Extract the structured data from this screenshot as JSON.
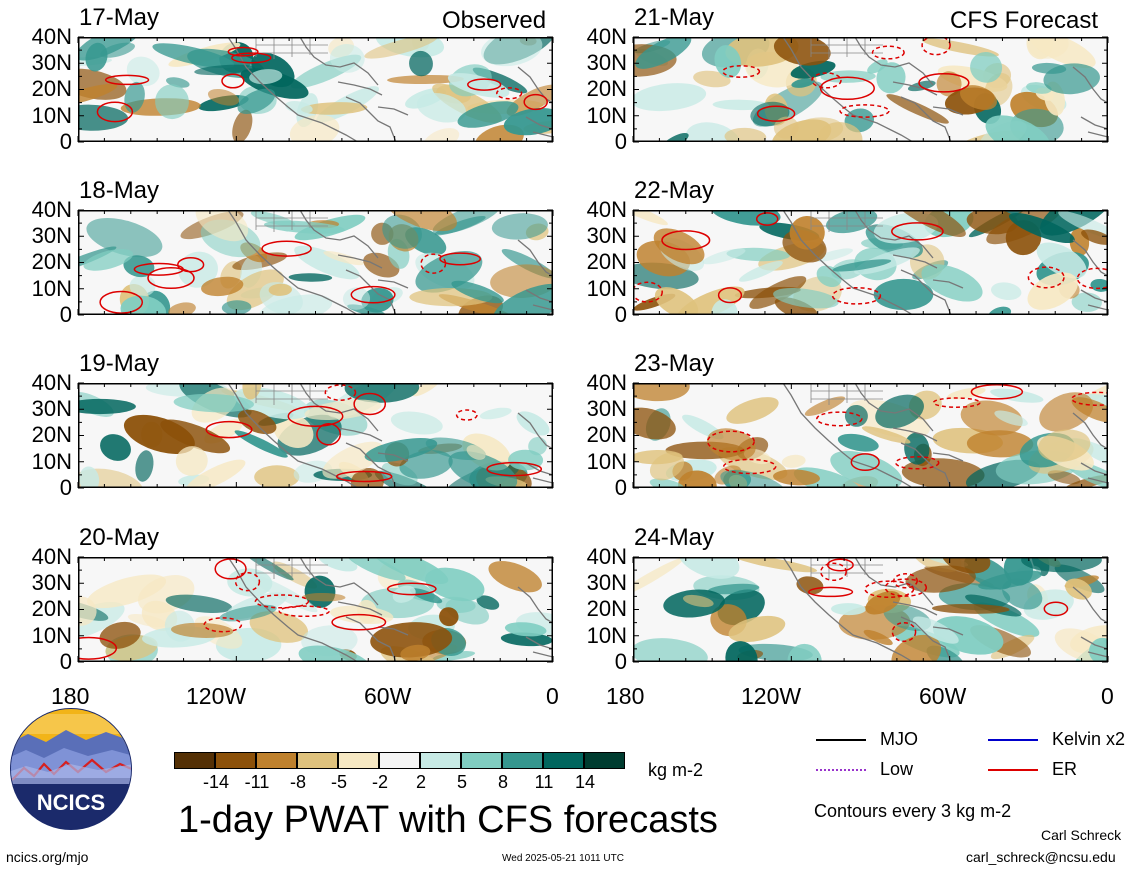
{
  "left_column": {
    "header": "Observed",
    "panels": [
      "17-May",
      "18-May",
      "19-May",
      "20-May"
    ]
  },
  "right_column": {
    "header": "CFS Forecast",
    "panels": [
      "21-May",
      "22-May",
      "23-May",
      "24-May"
    ]
  },
  "y_axis_ticks": [
    "40N",
    "30N",
    "20N",
    "10N",
    "0"
  ],
  "x_axis_ticks": [
    "180",
    "120W",
    "60W",
    "0"
  ],
  "colorbar": {
    "labels": [
      "-14",
      "-11",
      "-8",
      "-5",
      "-2",
      "2",
      "5",
      "8",
      "11",
      "14"
    ],
    "units": "kg m-2",
    "colors": [
      "#543005",
      "#8c510a",
      "#bf812d",
      "#dfc27d",
      "#f6e8c3",
      "#f5f5f5",
      "#c7eae5",
      "#80cdc1",
      "#35978f",
      "#01665e",
      "#003c30"
    ]
  },
  "title": "1-day PWAT with CFS forecasts",
  "contour_legend": {
    "items": [
      {
        "label": "MJO",
        "color": "#000000"
      },
      {
        "label": "Kelvin x2",
        "color": "#0000cc"
      },
      {
        "label": "Low",
        "color": "#9933cc"
      },
      {
        "label": "ER",
        "color": "#dd0000"
      }
    ],
    "note": "Contours every 3 kg m-2"
  },
  "logo": {
    "text": "NCICS"
  },
  "footer": {
    "url": "ncics.org/mjo",
    "timestamp": "Wed 2025-05-21 1011 UTC",
    "author": "Carl Schreck",
    "email": "carl_schreck@ncsu.edu"
  }
}
